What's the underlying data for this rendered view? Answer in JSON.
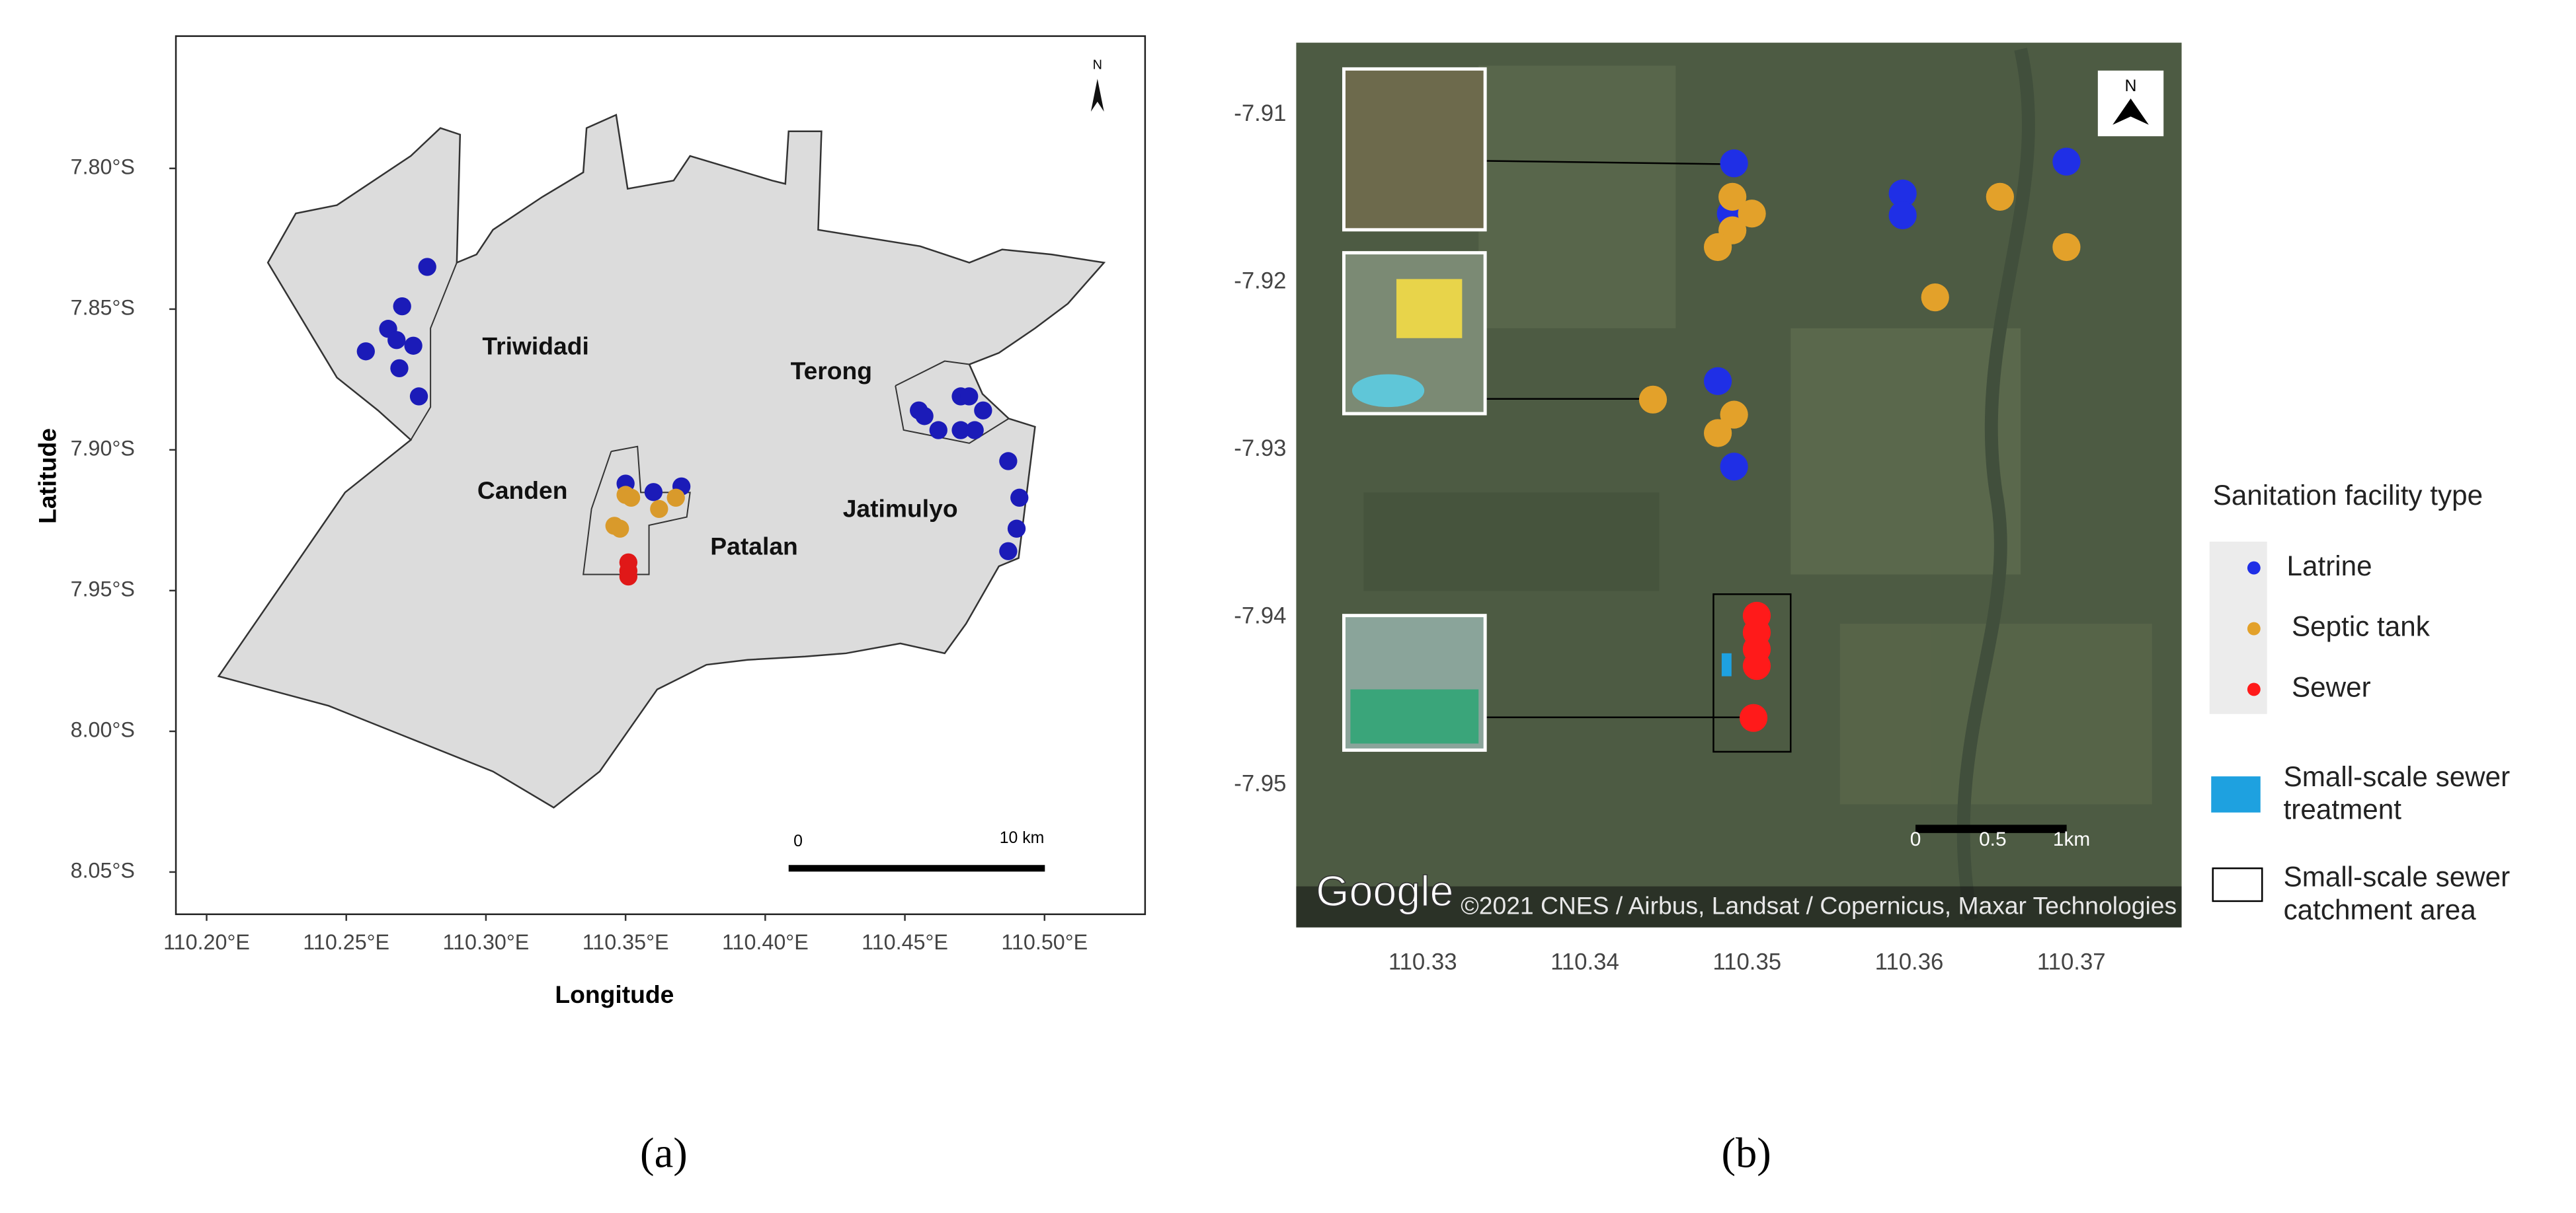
{
  "figure": {
    "panel_labels": [
      "(a)",
      "(b)"
    ]
  },
  "chart_data": [
    {
      "type": "scatter",
      "x_label": "Longitude",
      "y_label": "Latitude",
      "annotations": [
        "Triwidadi",
        "Canden",
        "Patalan",
        "Terong",
        "Jatimulyo"
      ],
      "scale_bar": [
        "0",
        "10 km"
      ],
      "north": "N",
      "xlim": [
        110.189,
        110.536
      ],
      "ylim": [
        -8.065,
        -7.753
      ],
      "xticks": [
        {
          "value": 110.2,
          "label": "110.20°E"
        },
        {
          "value": 110.25,
          "label": "110.25°E"
        },
        {
          "value": 110.3,
          "label": "110.30°E"
        },
        {
          "value": 110.35,
          "label": "110.35°E"
        },
        {
          "value": 110.4,
          "label": "110.40°E"
        },
        {
          "value": 110.45,
          "label": "110.45°E"
        },
        {
          "value": 110.5,
          "label": "110.50°E"
        }
      ],
      "yticks": [
        {
          "value": -7.8,
          "label": "7.80°S"
        },
        {
          "value": -7.85,
          "label": "7.85°S"
        },
        {
          "value": -7.9,
          "label": "7.90°S"
        },
        {
          "value": -7.95,
          "label": "7.95°S"
        },
        {
          "value": -8.0,
          "label": "8.00°S"
        },
        {
          "value": -8.05,
          "label": "8.05°S"
        }
      ],
      "series": [
        {
          "color": "#1b1bb8",
          "x": [
            110.279,
            110.27,
            110.265,
            110.268,
            110.274,
            110.269,
            110.257,
            110.276,
            110.455,
            110.457,
            110.462,
            110.47,
            110.473,
            110.478,
            110.47,
            110.475,
            110.487,
            110.491,
            110.49,
            110.487,
            110.35,
            110.36,
            110.37
          ],
          "y": [
            -7.835,
            -7.849,
            -7.857,
            -7.861,
            -7.863,
            -7.871,
            -7.865,
            -7.881,
            -7.886,
            -7.888,
            -7.893,
            -7.881,
            -7.881,
            -7.886,
            -7.893,
            -7.893,
            -7.904,
            -7.917,
            -7.928,
            -7.936,
            -7.912,
            -7.915,
            -7.913
          ]
        },
        {
          "color": "#d99a2b",
          "x": [
            110.35,
            110.352,
            110.346,
            110.348,
            110.362,
            110.368
          ],
          "y": [
            -7.916,
            -7.917,
            -7.927,
            -7.928,
            -7.921,
            -7.917
          ]
        },
        {
          "color": "#e01818",
          "x": [
            110.351,
            110.351,
            110.351
          ],
          "y": [
            -7.94,
            -7.943,
            -7.945
          ]
        }
      ]
    },
    {
      "type": "scatter",
      "legend_title": "Sanitation facility type",
      "legend_extra": [
        "Small-scale sewer treatment",
        "Small-scale sewer catchment area"
      ],
      "attribution": "©2021 CNES / Airbus, Landsat / Copernicus, Maxar Technologies",
      "logo": "Google",
      "scale_bar": [
        "0",
        "0.5",
        "1km"
      ],
      "north": "N",
      "xlim": [
        110.3222,
        110.3768
      ],
      "ylim": [
        -7.9585,
        -7.9057
      ],
      "xticks": [
        110.33,
        110.34,
        110.35,
        110.36,
        110.37
      ],
      "yticks": [
        -7.91,
        -7.92,
        -7.93,
        -7.94,
        -7.95
      ],
      "series": [
        {
          "name": "Latrine",
          "color": "#1f2fe6",
          "x": [
            110.3492,
            110.349,
            110.3596,
            110.3596,
            110.3697,
            110.3482,
            110.3492
          ],
          "y": [
            -7.9129,
            -7.9159,
            -7.9147,
            -7.916,
            -7.9128,
            -7.9259,
            -7.931
          ]
        },
        {
          "name": "Septic tank",
          "color": "#e3a12a",
          "x": [
            110.3491,
            110.3503,
            110.3491,
            110.3482,
            110.3656,
            110.3697,
            110.3616,
            110.3442,
            110.3492,
            110.3482
          ],
          "y": [
            -7.9149,
            -7.9159,
            -7.9169,
            -7.9179,
            -7.9149,
            -7.9179,
            -7.9209,
            -7.927,
            -7.9279,
            -7.929
          ]
        },
        {
          "name": "Sewer",
          "color": "#ff1a1a",
          "x": [
            110.3506,
            110.3506,
            110.3506,
            110.3506,
            110.3504
          ],
          "y": [
            -7.9399,
            -7.9409,
            -7.9419,
            -7.9429,
            -7.946
          ]
        }
      ]
    }
  ]
}
